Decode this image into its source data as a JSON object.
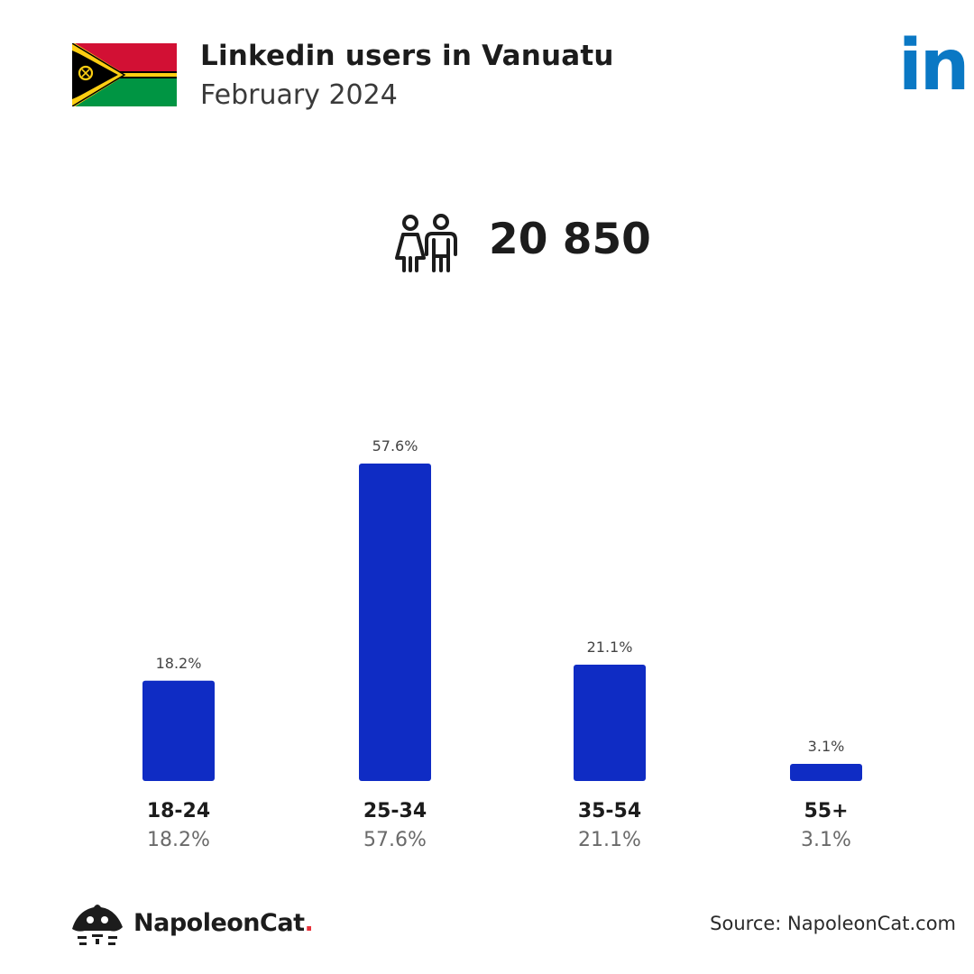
{
  "header": {
    "title": "Linkedin users in Vanuatu",
    "subtitle": "February 2024"
  },
  "flag": {
    "country": "Vanuatu",
    "colors": {
      "red": "#d21034",
      "green": "#009543",
      "black": "#000000",
      "yellow": "#fdce12"
    }
  },
  "brand_logo": {
    "icon": "linkedin-logo",
    "text": "in",
    "color": "#0a78c4"
  },
  "total": {
    "icon": "people-icon",
    "value": "20 850"
  },
  "chart_data": {
    "type": "bar",
    "categories": [
      "18-24",
      "25-34",
      "35-54",
      "55+"
    ],
    "values": [
      18.2,
      57.6,
      21.1,
      3.1
    ],
    "bar_labels": [
      "18.2%",
      "57.6%",
      "21.1%",
      "3.1%"
    ],
    "value_labels": [
      "18.2%",
      "57.6%",
      "21.1%",
      "3.1%"
    ],
    "unit": "%",
    "bar_color": "#0f2cc4",
    "title": "",
    "xlabel": "",
    "ylabel": "",
    "grid": false,
    "legend": "none"
  },
  "footer": {
    "brand_name": "NapoleonCat",
    "brand_dot": ".",
    "brand_dot_color": "#e8313a",
    "source": "Source: NapoleonCat.com"
  }
}
